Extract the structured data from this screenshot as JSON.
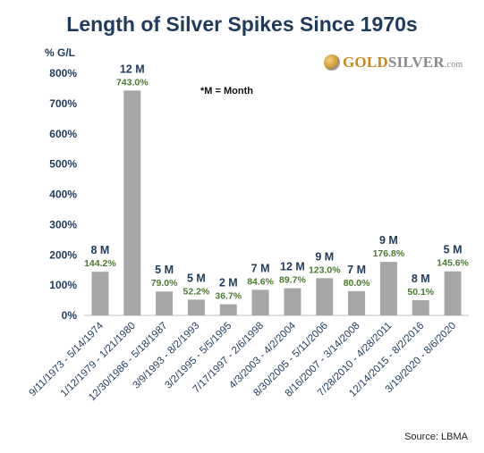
{
  "chart_data": {
    "type": "bar",
    "title": "Length of Silver Spikes Since 1970s",
    "ylabel": "% G/L",
    "ylim": [
      0,
      800
    ],
    "yticks": [
      0,
      100,
      200,
      300,
      400,
      500,
      600,
      700,
      800
    ],
    "ytick_labels": [
      "0%",
      "100%",
      "200%",
      "300%",
      "400%",
      "500%",
      "600%",
      "700%",
      "800%"
    ],
    "grid": false,
    "legend": "none",
    "annotation": "*M = Month",
    "bar_color": "#a6a6a6",
    "value_label_color": "#4a7a2c",
    "duration_label_color": "#1f3b5c",
    "categories": [
      "9/11/1973 - 5/14/1974",
      "1/12/1979 - 1/21/1980",
      "12/30/1986 - 5/18/1987",
      "3/9/1993 - 8/2/1993",
      "3/2/1995 - 5/5/1995",
      "7/17/1997 - 2/6/1998",
      "4/3/2003 - 4/2/2004",
      "8/30/2005 - 5/11/2006",
      "8/16/2007 - 3/14/2008",
      "7/28/2010 - 4/28/2011",
      "12/14/2015 - 8/2/2016",
      "3/19/2020 - 8/6/2020"
    ],
    "values": [
      144.2,
      743.0,
      79.0,
      52.2,
      36.7,
      84.6,
      89.7,
      123.0,
      80.0,
      176.8,
      50.1,
      145.6
    ],
    "value_labels": [
      "144.2%",
      "743.0%",
      "79.0%",
      "52.2%",
      "36.7%",
      "84.6%",
      "89.7%",
      "123.0%",
      "80.0%",
      "176.8%",
      "50.1%",
      "145.6%"
    ],
    "duration_labels": [
      "8 M",
      "12 M",
      "5 M",
      "5 M",
      "2 M",
      "7 M",
      "12 M",
      "9 M",
      "7 M",
      "9 M",
      "8 M",
      "5 M"
    ]
  },
  "logo": {
    "gold": "GOLD",
    "silver": "SILVER",
    "dotcom": ".com"
  },
  "source": "Source: LBMA"
}
